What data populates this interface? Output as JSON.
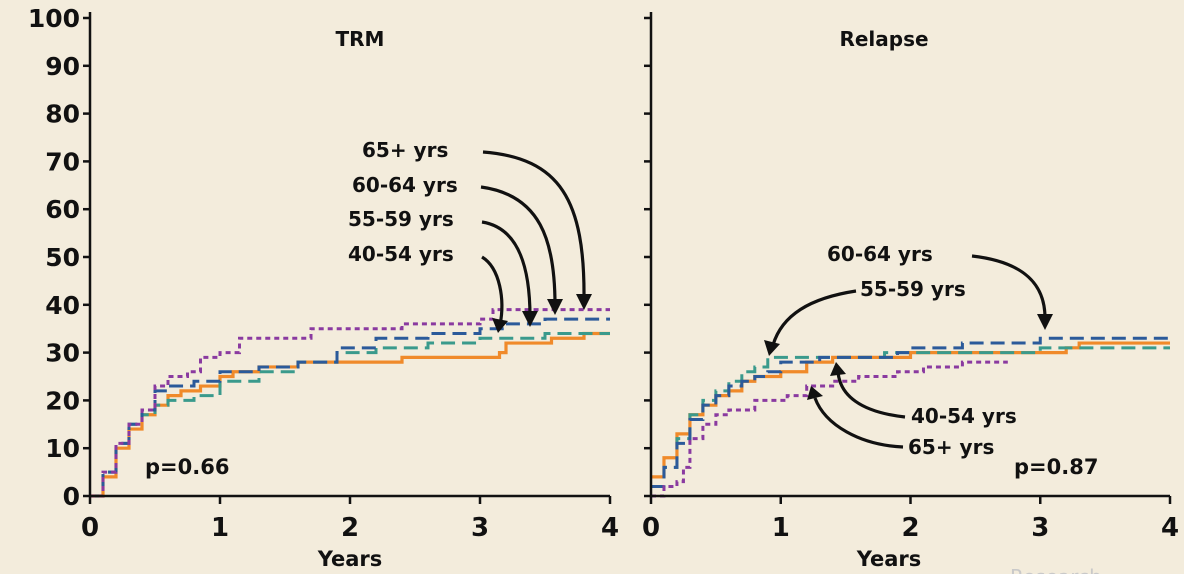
{
  "watermark": "Research",
  "colors": {
    "orange": "#f08a2a",
    "darkblue": "#2b5a9a",
    "teal": "#3a9a8c",
    "purple": "#8a3aa0",
    "axis": "#111111",
    "background": "#f3ecdc"
  },
  "chart_data": [
    {
      "type": "line",
      "title": "TRM",
      "xlabel": "Years",
      "ylabel": "",
      "xlim": [
        0,
        4
      ],
      "ylim": [
        0,
        100
      ],
      "xticks": [
        "0",
        "1",
        "2",
        "3",
        "4"
      ],
      "yticks": [
        "0",
        "10",
        "20",
        "30",
        "40",
        "50",
        "60",
        "70",
        "80",
        "90",
        "100"
      ],
      "pvalue": "p=0.66",
      "series": [
        {
          "name": "40-54 yrs",
          "color": "#f08a2a",
          "dash": "solid",
          "x": [
            0,
            0.1,
            0.2,
            0.3,
            0.4,
            0.5,
            0.6,
            0.7,
            0.85,
            1.0,
            1.1,
            1.3,
            1.6,
            2.0,
            2.4,
            2.7,
            3.1,
            3.15,
            3.2,
            3.45,
            3.55,
            3.75,
            3.8,
            4.0
          ],
          "y": [
            0,
            4,
            10,
            14,
            17,
            19,
            21,
            22,
            23,
            25,
            26,
            27,
            28,
            28,
            29,
            29,
            29,
            30,
            32,
            32,
            33,
            33,
            34,
            34
          ]
        },
        {
          "name": "55-59 yrs",
          "color": "#3a9a8c",
          "dash": "dashed",
          "x": [
            0,
            0.1,
            0.2,
            0.3,
            0.4,
            0.5,
            0.6,
            0.8,
            1.0,
            1.3,
            1.6,
            1.9,
            2.2,
            2.6,
            3.0,
            3.2,
            3.5,
            4.0
          ],
          "y": [
            0,
            5,
            11,
            15,
            17,
            19,
            20,
            21,
            24,
            26,
            28,
            30,
            31,
            32,
            33,
            33,
            34,
            34
          ]
        },
        {
          "name": "60-64 yrs",
          "color": "#2b5a9a",
          "dash": "dashed",
          "x": [
            0,
            0.1,
            0.2,
            0.3,
            0.4,
            0.5,
            0.6,
            0.8,
            1.0,
            1.3,
            1.6,
            1.9,
            2.2,
            2.6,
            3.0,
            3.2,
            3.5,
            3.7,
            4.0
          ],
          "y": [
            0,
            5,
            11,
            15,
            18,
            22,
            23,
            24,
            26,
            27,
            28,
            31,
            33,
            34,
            35,
            36,
            37,
            37,
            37
          ]
        },
        {
          "name": "65+ yrs",
          "color": "#8a3aa0",
          "dash": "dotted",
          "x": [
            0,
            0.1,
            0.2,
            0.3,
            0.4,
            0.5,
            0.6,
            0.75,
            0.85,
            1.0,
            1.15,
            1.4,
            1.7,
            2.0,
            2.4,
            2.8,
            3.0,
            3.1,
            3.3,
            3.7,
            4.0
          ],
          "y": [
            0,
            5,
            11,
            15,
            18,
            23,
            25,
            26,
            29,
            30,
            33,
            33,
            35,
            35,
            36,
            36,
            37,
            39,
            39,
            39,
            39
          ]
        }
      ],
      "annotations": [
        "65+ yrs",
        "60-64 yrs",
        "55-59 yrs",
        "40-54 yrs"
      ]
    },
    {
      "type": "line",
      "title": "Relapse",
      "xlabel": "Years",
      "ylabel": "",
      "xlim": [
        0,
        4
      ],
      "ylim": [
        0,
        100
      ],
      "xticks": [
        "0",
        "1",
        "2",
        "3",
        "4"
      ],
      "yticks": [],
      "pvalue": "p=0.87",
      "series": [
        {
          "name": "40-54 yrs",
          "color": "#f08a2a",
          "dash": "solid",
          "x": [
            0,
            0.05,
            0.1,
            0.2,
            0.3,
            0.4,
            0.5,
            0.6,
            0.7,
            0.8,
            0.9,
            1.0,
            1.2,
            1.4,
            1.7,
            2.0,
            2.5,
            3.0,
            3.2,
            3.3,
            4.0
          ],
          "y": [
            4,
            4,
            8,
            13,
            17,
            19,
            21,
            22,
            24,
            25,
            25,
            26,
            28,
            29,
            29,
            30,
            30,
            30,
            31,
            32,
            32
          ]
        },
        {
          "name": "55-59 yrs",
          "color": "#3a9a8c",
          "dash": "dashed",
          "x": [
            0,
            0.1,
            0.2,
            0.3,
            0.4,
            0.5,
            0.6,
            0.7,
            0.8,
            0.9,
            1.0,
            1.2,
            1.5,
            1.8,
            2.0,
            2.5,
            3.0,
            3.5,
            4.0
          ],
          "y": [
            2,
            6,
            12,
            17,
            20,
            22,
            24,
            26,
            27,
            29,
            29,
            29,
            29,
            30,
            30,
            30,
            31,
            31,
            31
          ]
        },
        {
          "name": "60-64 yrs",
          "color": "#2b5a9a",
          "dash": "dashed",
          "x": [
            0,
            0.1,
            0.2,
            0.3,
            0.4,
            0.5,
            0.6,
            0.7,
            0.8,
            0.9,
            1.0,
            1.3,
            1.6,
            1.9,
            2.0,
            2.4,
            2.8,
            3.0,
            4.0
          ],
          "y": [
            2,
            6,
            11,
            16,
            19,
            21,
            23,
            24,
            25,
            26,
            28,
            29,
            29,
            30,
            31,
            32,
            32,
            33,
            33
          ]
        },
        {
          "name": "65+ yrs",
          "color": "#8a3aa0",
          "dash": "dotted",
          "x": [
            0,
            0.1,
            0.2,
            0.25,
            0.3,
            0.4,
            0.5,
            0.6,
            0.8,
            1.0,
            1.05,
            1.2,
            1.4,
            1.6,
            1.9,
            2.1,
            2.4,
            2.75
          ],
          "y": [
            0,
            2,
            3,
            6,
            12,
            15,
            17,
            18,
            20,
            20,
            21,
            23,
            24,
            25,
            26,
            27,
            28,
            28
          ]
        }
      ],
      "annotations": [
        "60-64 yrs",
        "55-59 yrs",
        "40-54 yrs",
        "65+ yrs"
      ]
    }
  ]
}
